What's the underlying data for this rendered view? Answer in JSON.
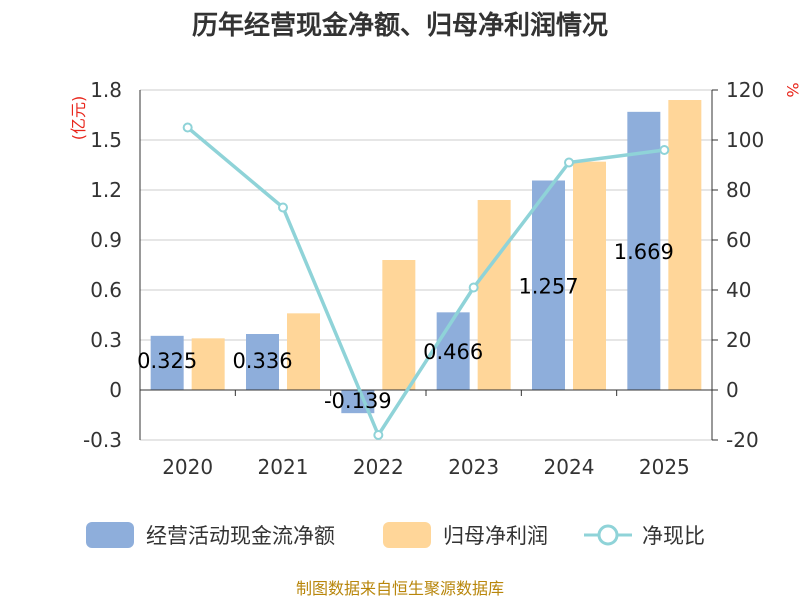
{
  "chart_data": {
    "type": "bar",
    "title": "历年经营现金净额、归母净利润情况",
    "categories": [
      "2020",
      "2021",
      "2022",
      "2023",
      "2024",
      "2025"
    ],
    "series": [
      {
        "name": "经营活动现金流净额",
        "type": "bar",
        "axis": "left",
        "color": "#8eaedb",
        "values": [
          0.325,
          0.336,
          -0.139,
          0.466,
          1.257,
          1.669
        ],
        "labels": [
          "0.325",
          "0.336",
          "-0.139",
          "0.466",
          "1.257",
          "1.669"
        ]
      },
      {
        "name": "归母净利润",
        "type": "bar",
        "axis": "left",
        "color": "#ffd699",
        "values": [
          0.31,
          0.46,
          0.78,
          1.14,
          1.37,
          1.74
        ]
      },
      {
        "name": "净现比",
        "type": "line",
        "axis": "right",
        "color": "#8fd3d8",
        "values": [
          105,
          73,
          -18,
          41,
          91,
          96
        ]
      }
    ],
    "left_axis": {
      "label": "(亿元)",
      "ylim": [
        -0.3,
        1.8
      ],
      "ticks": [
        "-0.3",
        "0",
        "0.3",
        "0.6",
        "0.9",
        "1.2",
        "1.5",
        "1.8"
      ]
    },
    "right_axis": {
      "label": "%",
      "ylim": [
        -20,
        120
      ],
      "ticks": [
        "-20",
        "0",
        "20",
        "40",
        "60",
        "80",
        "100",
        "120"
      ]
    },
    "legend_position": "bottom",
    "source": "制图数据来自恒生聚源数据库"
  }
}
